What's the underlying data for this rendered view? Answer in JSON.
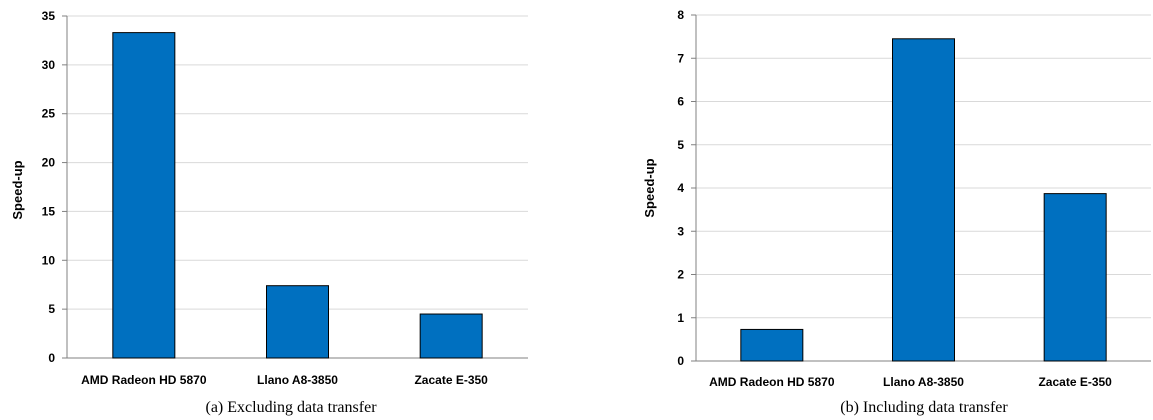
{
  "chart_data": [
    {
      "type": "bar",
      "caption": "(a) Excluding data transfer",
      "categories": [
        "AMD Radeon HD 5870",
        "Llano A8-3850",
        "Zacate E-350"
      ],
      "values": [
        33.3,
        7.4,
        4.5
      ],
      "ylabel": "Speed-up",
      "ylim": [
        0,
        35
      ],
      "yticks": [
        0,
        5,
        10,
        15,
        20,
        25,
        30,
        35
      ],
      "grid": true,
      "bar_color": "#0070c0"
    },
    {
      "type": "bar",
      "caption": "(b) Including data transfer",
      "categories": [
        "AMD Radeon HD 5870",
        "Llano A8-3850",
        "Zacate E-350"
      ],
      "values": [
        0.73,
        7.45,
        3.87
      ],
      "ylabel": "Speed-up",
      "ylim": [
        0,
        8
      ],
      "yticks": [
        0,
        1,
        2,
        3,
        4,
        5,
        6,
        7,
        8
      ],
      "grid": true,
      "bar_color": "#0070c0"
    }
  ]
}
